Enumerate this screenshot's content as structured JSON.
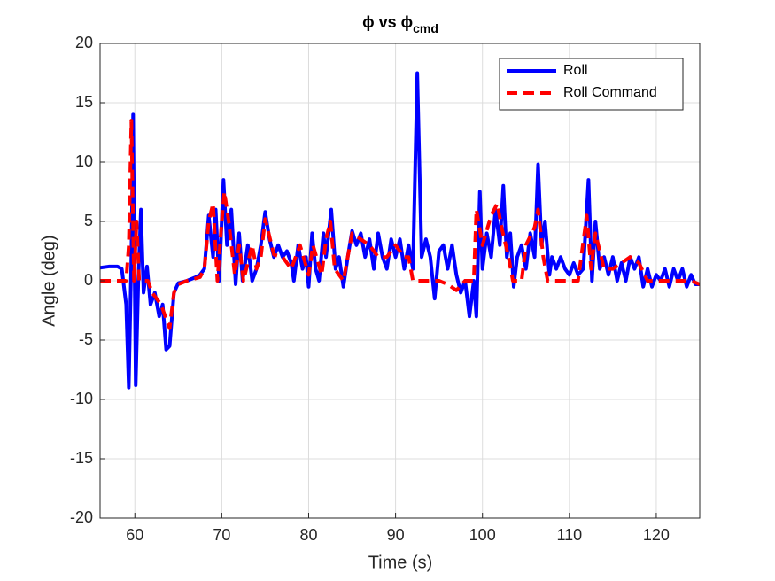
{
  "chart_data": {
    "type": "line",
    "title": {
      "text": "ϕ  vs  ϕ",
      "subscript": "cmd"
    },
    "x_label": "Time (s)",
    "y_label": "Angle (deg)",
    "xlim": [
      56,
      125
    ],
    "xticks": [
      60,
      70,
      80,
      90,
      100,
      110,
      120
    ],
    "ylim": [
      -20,
      20
    ],
    "yticks": [
      -20,
      -15,
      -10,
      -5,
      0,
      5,
      10,
      15,
      20
    ],
    "grid": true,
    "legend": "northeast",
    "series": [
      {
        "name": "Roll",
        "color": "#0000ff",
        "style": "solid",
        "x": [
          56,
          57,
          58,
          58.5,
          59,
          59.3,
          59.6,
          59.8,
          60.1,
          60.4,
          60.7,
          61,
          61.4,
          61.8,
          62.3,
          62.8,
          63.2,
          63.6,
          64,
          64.5,
          65,
          66,
          67,
          67.5,
          68,
          68.5,
          69,
          69.3,
          69.7,
          70.2,
          70.6,
          71.1,
          71.6,
          72,
          72.4,
          73,
          73.5,
          74,
          74.5,
          75,
          75.5,
          76,
          76.5,
          77,
          77.5,
          78,
          78.3,
          78.8,
          79.3,
          79.7,
          80,
          80.4,
          80.8,
          81.2,
          81.7,
          82,
          82.6,
          83.1,
          83.5,
          84,
          84.5,
          85,
          85.5,
          86,
          86.5,
          87,
          87.5,
          88,
          88.5,
          89,
          89.5,
          90,
          90.5,
          91,
          91.5,
          92,
          92.5,
          93,
          93.5,
          94,
          94.5,
          95,
          95.5,
          96,
          96.5,
          97,
          97.5,
          98,
          98.5,
          99,
          99.3,
          99.7,
          100,
          100.5,
          101,
          101.5,
          102,
          102.4,
          102.8,
          103.2,
          103.6,
          104,
          104.5,
          105,
          105.5,
          106,
          106.4,
          106.8,
          107.2,
          107.7,
          108,
          108.5,
          109,
          109.5,
          110,
          110.5,
          111,
          111.6,
          112.2,
          112.6,
          113,
          113.5,
          114,
          114.5,
          115,
          115.5,
          116,
          116.5,
          117,
          117.5,
          118,
          118.5,
          119,
          119.5,
          120,
          120.5,
          121,
          121.5,
          122,
          122.5,
          123,
          123.5,
          124,
          124.5,
          125
        ],
        "values": [
          1.1,
          1.2,
          1.2,
          1.0,
          -2,
          -9,
          2,
          14,
          -8.8,
          0,
          6,
          -1,
          1.2,
          -2,
          -1,
          -3,
          -2,
          -5.8,
          -5.5,
          -1,
          -0.2,
          0,
          0.3,
          0.5,
          1,
          5.5,
          2,
          6,
          0,
          8.5,
          3,
          6,
          -0.3,
          4,
          0,
          3,
          0,
          1,
          3,
          5.8,
          3.5,
          2,
          3,
          2,
          2.5,
          1.5,
          0,
          3,
          1,
          2,
          -0.5,
          4,
          1,
          0,
          4,
          2,
          6,
          1,
          2,
          -0.5,
          2,
          4.2,
          3,
          4,
          2,
          3.5,
          1,
          4,
          2,
          1,
          3.5,
          2,
          3.5,
          1,
          3,
          1,
          17.5,
          2,
          3.5,
          2,
          -1.5,
          2.5,
          3,
          1,
          3,
          0.5,
          -1,
          0,
          -3,
          0,
          -3,
          7.5,
          1,
          4,
          2,
          6,
          3,
          8,
          2,
          4,
          -0.5,
          2,
          3,
          1,
          4,
          2,
          9.8,
          3,
          5,
          0.5,
          2,
          1,
          2,
          1,
          0.5,
          1.5,
          0.5,
          1,
          8.5,
          0,
          5,
          1,
          2,
          0.5,
          2,
          0,
          1.5,
          0,
          2,
          1,
          2,
          -0.5,
          1,
          -0.5,
          0.5,
          0,
          1,
          -0.5,
          1,
          0,
          1,
          -0.5,
          0.5,
          -0.3,
          -0.3
        ]
      },
      {
        "name": "Roll Command",
        "color": "#ff0000",
        "style": "dashed",
        "x": [
          56,
          59,
          59.3,
          59.6,
          59.9,
          60.2,
          60.5,
          61.5,
          62,
          63,
          63.5,
          64,
          64.5,
          65,
          66,
          67.5,
          68,
          68.5,
          69,
          69.5,
          70,
          70.3,
          70.8,
          71.5,
          72,
          72.5,
          73.5,
          74,
          74.5,
          75,
          76,
          77,
          78,
          79,
          80,
          80.5,
          81.5,
          82,
          82.5,
          83,
          84,
          85,
          86,
          87,
          88,
          89,
          90,
          91,
          91.5,
          92,
          94,
          95,
          96,
          97,
          98,
          99,
          99.3,
          100,
          101,
          101.7,
          102.2,
          103,
          103.5,
          104.5,
          105,
          106,
          106.4,
          107,
          107.5,
          109,
          110,
          111,
          112,
          112.5,
          113,
          114,
          115,
          116,
          117,
          118,
          119,
          120,
          122,
          124,
          125
        ],
        "values": [
          0,
          0,
          3,
          13.5,
          0,
          5,
          0,
          0,
          -1,
          -2,
          -3,
          -4,
          -1,
          -0.3,
          0,
          0.3,
          1,
          5,
          6.5,
          0,
          5,
          7.5,
          5,
          0.5,
          3,
          0,
          3,
          1,
          2,
          5.2,
          2.2,
          2,
          1,
          3,
          0.5,
          3,
          0.5,
          3.5,
          5,
          1,
          0,
          4,
          3.5,
          3,
          2,
          2,
          3,
          2,
          2,
          0,
          0,
          0,
          -0.3,
          -0.8,
          0,
          0,
          6,
          3,
          5.5,
          6.5,
          4.5,
          2,
          0,
          0,
          3,
          4.5,
          6,
          2,
          0,
          0,
          0,
          0,
          5.5,
          1,
          4,
          1,
          1,
          1.5,
          2,
          1.5,
          0,
          0,
          0,
          0,
          -0.3
        ]
      }
    ]
  }
}
